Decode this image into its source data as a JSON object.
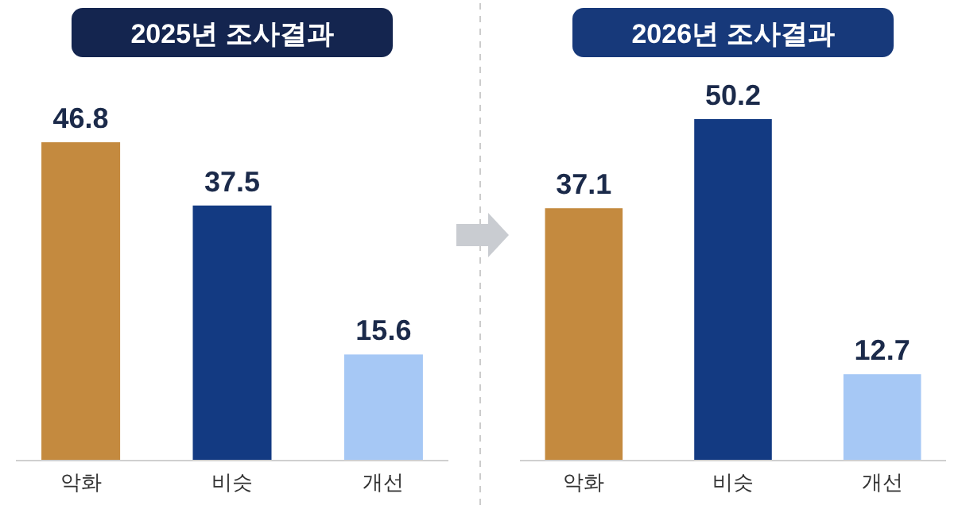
{
  "chart_data": [
    {
      "type": "bar",
      "title": "2025년 조사결과",
      "categories": [
        "악화",
        "비슷",
        "개선"
      ],
      "values": [
        46.8,
        37.5,
        15.6
      ],
      "colors": [
        "#c48a3f",
        "#133a82",
        "#a6c8f5"
      ],
      "data_labels": true
    },
    {
      "type": "bar",
      "title": "2026년 조사결과",
      "categories": [
        "악화",
        "비슷",
        "개선"
      ],
      "values": [
        37.1,
        50.2,
        12.7
      ],
      "colors": [
        "#c48a3f",
        "#133a82",
        "#a6c8f5"
      ],
      "data_labels": true
    }
  ]
}
